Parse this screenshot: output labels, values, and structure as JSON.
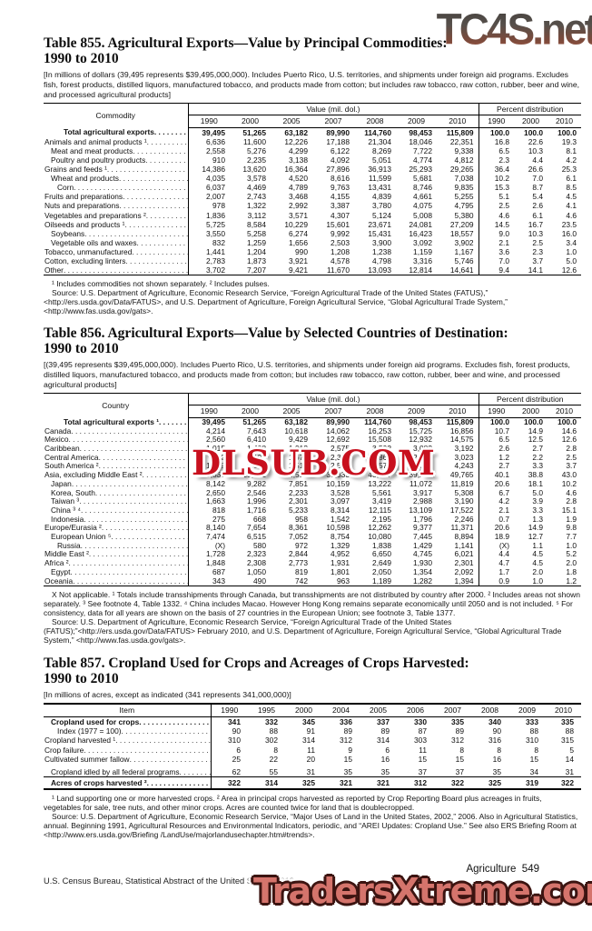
{
  "watermarks": {
    "top": "TC4S.net",
    "middle": "DLSUB.COM",
    "bottom": "TradersXtreme.com",
    "middle_color": "#c8101e",
    "bottom_fill": "#d5746c",
    "bottom_outline": "#3c1411"
  },
  "page": {
    "footer_right": "Agriculture  549",
    "footer_left": "U.S. Census Bureau, Statistical Abstract of the United States: 2012"
  },
  "table855": {
    "title_line1": "Table 855. Agricultural Exports—Value by Principal Commodities:",
    "title_line2": "1990 to 2010",
    "note": "[In millions of dollars (39,495 represents $39,495,000,000). Includes Puerto Rico, U.S. territories, and shipments under foreign aid programs. Excludes fish, forest products, distilled liquors, manufactured tobacco, and products made from cotton; but includes raw tobacco, raw cotton, rubber, beer and wine, and processed agricultural products]",
    "col_header": "Commodity",
    "value_group": "Value (mil. dol.)",
    "pct_group": "Percent distribution",
    "value_years": [
      "1990",
      "2000",
      "2005",
      "2007",
      "2008",
      "2009",
      "2010"
    ],
    "pct_years": [
      "1990",
      "2000",
      "2010"
    ],
    "rows": [
      {
        "label": "Total agricultural exports",
        "indent": "t",
        "bold": true,
        "values": [
          "39,495",
          "51,265",
          "63,182",
          "89,990",
          "114,760",
          "98,453",
          "115,809"
        ],
        "pct": [
          "100.0",
          "100.0",
          "100.0"
        ]
      },
      {
        "label": "Animals and animal products ¹",
        "indent": 0,
        "values": [
          "6,636",
          "11,600",
          "12,226",
          "17,188",
          "21,304",
          "18,046",
          "22,351"
        ],
        "pct": [
          "16.8",
          "22.6",
          "19.3"
        ]
      },
      {
        "label": "Meat and meat products",
        "indent": 1,
        "values": [
          "2,558",
          "5,276",
          "4,299",
          "6,122",
          "8,269",
          "7,722",
          "9,338"
        ],
        "pct": [
          "6.5",
          "10.3",
          "8.1"
        ]
      },
      {
        "label": "Poultry and poultry products",
        "indent": 1,
        "values": [
          "910",
          "2,235",
          "3,138",
          "4,092",
          "5,051",
          "4,774",
          "4,812"
        ],
        "pct": [
          "2.3",
          "4.4",
          "4.2"
        ]
      },
      {
        "label": "Grains and feeds ¹",
        "indent": 0,
        "values": [
          "14,386",
          "13,620",
          "16,364",
          "27,896",
          "36,913",
          "25,293",
          "29,265"
        ],
        "pct": [
          "36.4",
          "26.6",
          "25.3"
        ]
      },
      {
        "label": "Wheat and products",
        "indent": 1,
        "values": [
          "4,035",
          "3,578",
          "4,520",
          "8,616",
          "11,599",
          "5,681",
          "7,038"
        ],
        "pct": [
          "10.2",
          "7.0",
          "6.1"
        ]
      },
      {
        "label": "Corn",
        "indent": 2,
        "values": [
          "6,037",
          "4,469",
          "4,789",
          "9,763",
          "13,431",
          "8,746",
          "9,835"
        ],
        "pct": [
          "15.3",
          "8.7",
          "8.5"
        ]
      },
      {
        "label": "Fruits and preparations",
        "indent": 0,
        "values": [
          "2,007",
          "2,743",
          "3,468",
          "4,155",
          "4,839",
          "4,661",
          "5,255"
        ],
        "pct": [
          "5.1",
          "5.4",
          "4.5"
        ]
      },
      {
        "label": "Nuts and preparations",
        "indent": 0,
        "values": [
          "978",
          "1,322",
          "2,992",
          "3,387",
          "3,780",
          "4,075",
          "4,795"
        ],
        "pct": [
          "2.5",
          "2.6",
          "4.1"
        ]
      },
      {
        "label": "Vegetables and preparations ²",
        "indent": 0,
        "values": [
          "1,836",
          "3,112",
          "3,571",
          "4,307",
          "5,124",
          "5,008",
          "5,380"
        ],
        "pct": [
          "4.6",
          "6.1",
          "4.6"
        ]
      },
      {
        "label": "Oilseeds and products ¹",
        "indent": 0,
        "values": [
          "5,725",
          "8,584",
          "10,229",
          "15,601",
          "23,671",
          "24,081",
          "27,209"
        ],
        "pct": [
          "14.5",
          "16.7",
          "23.5"
        ]
      },
      {
        "label": "Soybeans",
        "indent": 1,
        "values": [
          "3,550",
          "5,258",
          "6,274",
          "9,992",
          "15,431",
          "16,423",
          "18,557"
        ],
        "pct": [
          "9.0",
          "10.3",
          "16.0"
        ]
      },
      {
        "label": "Vegetable oils and waxes",
        "indent": 1,
        "values": [
          "832",
          "1,259",
          "1,656",
          "2,503",
          "3,900",
          "3,092",
          "3,902"
        ],
        "pct": [
          "2.1",
          "2.5",
          "3.4"
        ]
      },
      {
        "label": "Tobacco, unmanufactured",
        "indent": 0,
        "values": [
          "1,441",
          "1,204",
          "990",
          "1,208",
          "1,238",
          "1,159",
          "1,167"
        ],
        "pct": [
          "3.6",
          "2.3",
          "1.0"
        ]
      },
      {
        "label": "Cotton, excluding linters",
        "indent": 0,
        "values": [
          "2,783",
          "1,873",
          "3,921",
          "4,578",
          "4,798",
          "3,316",
          "5,746"
        ],
        "pct": [
          "7.0",
          "3.7",
          "5.0"
        ]
      },
      {
        "label": "Other",
        "indent": 0,
        "values": [
          "3,702",
          "7,207",
          "9,421",
          "11,670",
          "13,093",
          "12,814",
          "14,641"
        ],
        "pct": [
          "9.4",
          "14.1",
          "12.6"
        ]
      }
    ],
    "footnote": "¹ Includes commodities not shown separately. ² Includes pulses.",
    "source": "Source: U.S. Department of Agriculture, Economic Research Service, “Foreign Agricultural Trade of the United States (FATUS),” <http://ers.usda.gov/Data/FATUS>, and U.S. Department of Agriculture, Foreign Agricultural Service, “Global Agricultural Trade System,” <http://www.fas.usda.gov/gats>."
  },
  "table856": {
    "title_line1": "Table 856. Agricultural Exports—Value by Selected Countries of Destination:",
    "title_line2": "1990 to 2010",
    "note": "[(39,495 represents $39,495,000,000). Includes Puerto Rico, U.S. territories, and shipments under foreign aid programs. Excludes fish, forest products, distilled liquors, manufactured tobacco, and products made from cotton; but includes raw tobacco, raw cotton, rubber, beer and wine, and processed agricultural products]",
    "col_header": "Country",
    "value_group": "Value (mil. dol.)",
    "pct_group": "Percent distribution",
    "value_years": [
      "1990",
      "2000",
      "2005",
      "2007",
      "2008",
      "2009",
      "2010"
    ],
    "pct_years": [
      "1990",
      "2000",
      "2010"
    ],
    "rows": [
      {
        "label": "Total agricultural exports ¹",
        "indent": "t",
        "bold": true,
        "values": [
          "39,495",
          "51,265",
          "63,182",
          "89,990",
          "114,760",
          "98,453",
          "115,809"
        ],
        "pct": [
          "100.0",
          "100.0",
          "100.0"
        ]
      },
      {
        "label": "Canada",
        "indent": 0,
        "values": [
          "4,214",
          "7,643",
          "10,618",
          "14,062",
          "16,253",
          "15,725",
          "16,856"
        ],
        "pct": [
          "10.7",
          "14.9",
          "14.6"
        ]
      },
      {
        "label": "Mexico",
        "indent": 0,
        "values": [
          "2,560",
          "6,410",
          "9,429",
          "12,692",
          "15,508",
          "12,932",
          "14,575"
        ],
        "pct": [
          "6.5",
          "12.5",
          "12.6"
        ]
      },
      {
        "label": "Caribbean",
        "indent": 0,
        "values": [
          "1,015",
          "1,408",
          "1,913",
          "2,575",
          "3,592",
          "3,082",
          "3,192"
        ],
        "pct": [
          "2.6",
          "2.7",
          "2.8"
        ]
      },
      {
        "label": "Central America",
        "indent": 0,
        "values": [
          "462",
          "1,128",
          "1,675",
          "2,365",
          "2,862",
          "2,533",
          "3,023"
        ],
        "pct": [
          "1.2",
          "2.2",
          "2.5"
        ]
      },
      {
        "label": "South America ²",
        "indent": 0,
        "values": [
          "1,069",
          "1,692",
          "1,516",
          "2,515",
          "3,579",
          "3,292",
          "4,243"
        ],
        "pct": [
          "2.7",
          "3.3",
          "3.7"
        ]
      },
      {
        "label": "Asia, excluding Middle East ²",
        "indent": 0,
        "values": [
          "15,837",
          "19,891",
          "24,559",
          "33,333",
          "43,047",
          "39,278",
          "49,765"
        ],
        "pct": [
          "40.1",
          "38.8",
          "43.0"
        ]
      },
      {
        "label": "Japan",
        "indent": 1,
        "values": [
          "8,142",
          "9,282",
          "7,851",
          "10,159",
          "13,222",
          "11,072",
          "11,819"
        ],
        "pct": [
          "20.6",
          "18.1",
          "10.2"
        ]
      },
      {
        "label": "Korea, South",
        "indent": 1,
        "values": [
          "2,650",
          "2,546",
          "2,233",
          "3,528",
          "5,561",
          "3,917",
          "5,308"
        ],
        "pct": [
          "6.7",
          "5.0",
          "4.6"
        ]
      },
      {
        "label": "Taiwan ³",
        "indent": 1,
        "values": [
          "1,663",
          "1,996",
          "2,301",
          "3,097",
          "3,419",
          "2,988",
          "3,190"
        ],
        "pct": [
          "4.2",
          "3.9",
          "2.8"
        ]
      },
      {
        "label": "China ³ ⁴",
        "indent": 1,
        "values": [
          "818",
          "1,716",
          "5,233",
          "8,314",
          "12,115",
          "13,109",
          "17,522"
        ],
        "pct": [
          "2.1",
          "3.3",
          "15.1"
        ]
      },
      {
        "label": "Indonesia",
        "indent": 1,
        "values": [
          "275",
          "668",
          "958",
          "1,542",
          "2,195",
          "1,796",
          "2,246"
        ],
        "pct": [
          "0.7",
          "1.3",
          "1.9"
        ]
      },
      {
        "label": "Europe/Eurasia ²",
        "indent": 0,
        "values": [
          "8,140",
          "7,654",
          "8,361",
          "10,598",
          "12,262",
          "9,377",
          "11,371"
        ],
        "pct": [
          "20.6",
          "14.9",
          "9.8"
        ]
      },
      {
        "label": "European Union ⁵",
        "indent": 1,
        "values": [
          "7,474",
          "6,515",
          "7,052",
          "8,754",
          "10,080",
          "7,445",
          "8,894"
        ],
        "pct": [
          "18.9",
          "12.7",
          "7.7"
        ]
      },
      {
        "label": "Russia",
        "indent": 2,
        "values": [
          "(X)",
          "580",
          "972",
          "1,329",
          "1,838",
          "1,429",
          "1,141"
        ],
        "pct": [
          "(X)",
          "1.1",
          "1.0"
        ]
      },
      {
        "label": "Middle East ²",
        "indent": 0,
        "values": [
          "1,728",
          "2,323",
          "2,844",
          "4,952",
          "6,650",
          "4,745",
          "6,021"
        ],
        "pct": [
          "4.4",
          "4.5",
          "5.2"
        ]
      },
      {
        "label": "Africa ²",
        "indent": 0,
        "values": [
          "1,848",
          "2,308",
          "2,773",
          "1,931",
          "2,649",
          "1,930",
          "2,301"
        ],
        "pct": [
          "4.7",
          "4.5",
          "2.0"
        ]
      },
      {
        "label": "Egypt",
        "indent": 1,
        "values": [
          "687",
          "1,050",
          "819",
          "1,801",
          "2,050",
          "1,354",
          "2,092"
        ],
        "pct": [
          "1.7",
          "2.0",
          "1.8"
        ]
      },
      {
        "label": "Oceania",
        "indent": 0,
        "values": [
          "343",
          "490",
          "742",
          "963",
          "1,189",
          "1,282",
          "1,394"
        ],
        "pct": [
          "0.9",
          "1.0",
          "1.2"
        ]
      }
    ],
    "footnote": "X Not applicable. ¹ Totals include transshipments through Canada, but transshipments are not distributed by country after 2000. ² Includes areas not shown separately. ³ See footnote 4, Table 1332. ⁴ China includes Macao.  However Hong Kong remains separate economically until 2050 and is not included. ⁵ For consistency, data for all years are shown on the basis of 27 countries in the European Union; see footnote 3, Table 1377.",
    "source": "Source: U.S. Department of Agriculture, Economic Research Service, “Foreign Agricultural Trade of the United States (FATUS);”<http://ers.usda.gov/Data/FATUS> February 2010, and U.S. Department of Agriculture, Foreign Agricultural Service, “Global Agricultural Trade System,” <http://www.fas.usda.gov/gats>."
  },
  "table857": {
    "title_line1": "Table 857. Cropland Used for Crops and Acreages of Crops Harvested:",
    "title_line2": "1990 to 2010",
    "note": "[In millions of acres, except as indicated (341 represents 341,000,000)]",
    "col_header": "Item",
    "years": [
      "1990",
      "1995",
      "2000",
      "2004",
      "2005",
      "2006",
      "2007",
      "2008",
      "2009",
      "2010"
    ],
    "rows": [
      {
        "label": "Cropland used for crops",
        "indent": 1,
        "bold": true,
        "values": [
          "341",
          "332",
          "345",
          "336",
          "337",
          "330",
          "335",
          "340",
          "333",
          "335"
        ]
      },
      {
        "label": "Index (1977 = 100)",
        "indent": 2,
        "values": [
          "90",
          "88",
          "91",
          "89",
          "89",
          "87",
          "89",
          "90",
          "88",
          "88"
        ]
      },
      {
        "label": "Cropland harvested ¹",
        "indent": 0,
        "values": [
          "310",
          "302",
          "314",
          "312",
          "314",
          "303",
          "312",
          "316",
          "310",
          "315"
        ]
      },
      {
        "label": "Crop failure",
        "indent": 0,
        "values": [
          "6",
          "8",
          "11",
          "9",
          "6",
          "11",
          "8",
          "8",
          "8",
          "5"
        ]
      },
      {
        "label": "Cultivated summer fallow",
        "indent": 0,
        "values": [
          "25",
          "22",
          "20",
          "15",
          "16",
          "15",
          "15",
          "16",
          "15",
          "14"
        ]
      },
      {
        "label": "Cropland idled by all federal programs",
        "indent": 1,
        "gap": true,
        "values": [
          "62",
          "55",
          "31",
          "35",
          "35",
          "37",
          "37",
          "35",
          "34",
          "31"
        ]
      },
      {
        "label": "Acres of crops harvested ²",
        "indent": 1,
        "bold": true,
        "gap": true,
        "line": true,
        "values": [
          "322",
          "314",
          "325",
          "321",
          "321",
          "312",
          "322",
          "325",
          "319",
          "322"
        ]
      }
    ],
    "footnote": "¹ Land supporting one or more harvested crops. ² Area in principal crops harvested as reported by Crop Reporting Board plus acreages in fruits, vegetables for sale, tree nuts, and other minor crops. Acres are counted twice for land that is doublecropped.",
    "source": "Source: U.S. Department of Agriculture, Economic Research Service, “Major Uses of Land in the United States, 2002,” 2006. Also in Agricultural Statistics, annual. Beginning 1991, Agricultural Resources and Environmental Indicators, periodic, and “AREI Updates: Cropland Use.” See also ERS Briefing Room at <http://www.ers.usda.gov/Briefing /LandUse/majorlandusechapter.htm#trends>."
  }
}
